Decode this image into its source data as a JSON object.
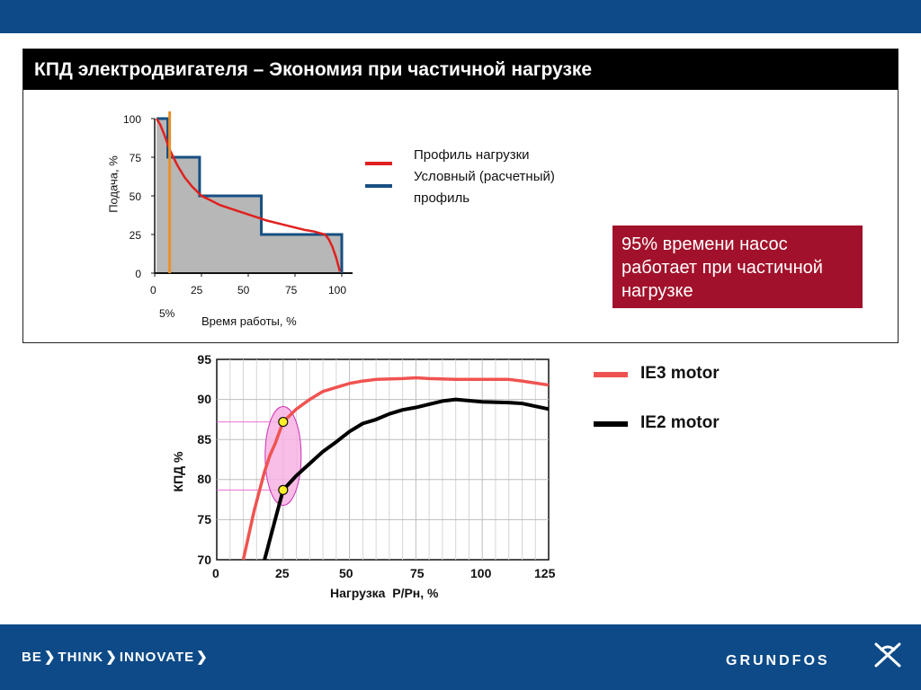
{
  "title": "КПД электродвигателя – Экономия при частичной нагрузке",
  "legend_top": {
    "load_profile": "Профиль нагрузки",
    "conditional_line1": "Условный (расчетный)",
    "conditional_line2": "профиль",
    "load_profile_color": "#e0211f",
    "conditional_color": "#174f82"
  },
  "callout": {
    "text_line1": "95% времени насос",
    "text_line2": "работает при частичной",
    "text_line3": "нагрузке",
    "color": "#a2112b"
  },
  "chart_data": [
    {
      "type": "area",
      "xlabel": "Время работы, %",
      "ylabel": "Подача, %",
      "xlim": [
        0,
        100
      ],
      "ylim": [
        0,
        100
      ],
      "xticks": [
        "0",
        "25",
        "50",
        "75",
        "100"
      ],
      "yticks": [
        "0",
        "25",
        "50",
        "75",
        "100"
      ],
      "marker_label": "5%",
      "marker_x": 8,
      "series": [
        {
          "name": "Профиль нагрузки",
          "color": "#e0211f",
          "x": [
            1,
            3,
            5,
            8,
            12,
            16,
            20,
            25,
            30,
            35,
            40,
            50,
            55,
            60,
            70,
            80,
            85,
            88,
            91,
            93,
            95,
            97,
            99
          ],
          "y": [
            100,
            96,
            90,
            80,
            70,
            62,
            56,
            50,
            47,
            44,
            42,
            38,
            36,
            34,
            31,
            28,
            27,
            26,
            25,
            22,
            17,
            10,
            1
          ]
        },
        {
          "name": "Условный (расчетный) профиль",
          "color": "#174f82",
          "x": [
            1,
            7,
            7,
            24,
            24,
            57,
            57,
            100,
            100
          ],
          "y": [
            100,
            100,
            75,
            75,
            50,
            50,
            25,
            25,
            0
          ]
        }
      ]
    },
    {
      "type": "line",
      "xlabel": "Нагрузка  Р/Рн, %",
      "ylabel": "КПД %",
      "xlim": [
        0,
        125
      ],
      "ylim": [
        70,
        95
      ],
      "xticks": [
        "0",
        "25",
        "50",
        "75",
        "100",
        "125"
      ],
      "yticks": [
        "70",
        "75",
        "80",
        "85",
        "90",
        "95"
      ],
      "highlight_points": [
        {
          "x": 25,
          "y": 87.2
        },
        {
          "x": 25,
          "y": 78.7
        }
      ],
      "series": [
        {
          "name": "IE3 motor",
          "color": "#ef5350",
          "x": [
            10,
            14,
            18,
            20,
            22,
            25,
            30,
            35,
            40,
            45,
            50,
            55,
            60,
            70,
            75,
            80,
            90,
            100,
            110,
            115,
            125
          ],
          "y": [
            70,
            76,
            81,
            83,
            84.5,
            87.2,
            88.8,
            90,
            91,
            91.5,
            92,
            92.3,
            92.5,
            92.6,
            92.7,
            92.6,
            92.5,
            92.5,
            92.5,
            92.3,
            91.8
          ]
        },
        {
          "name": "IE2 motor",
          "color": "#000000",
          "x": [
            18,
            22,
            25,
            30,
            35,
            40,
            45,
            50,
            55,
            60,
            65,
            70,
            75,
            80,
            85,
            90,
            100,
            110,
            115,
            125
          ],
          "y": [
            70,
            75,
            78.7,
            80.5,
            82,
            83.5,
            84.7,
            86,
            87,
            87.5,
            88.2,
            88.7,
            89,
            89.4,
            89.8,
            90,
            89.7,
            89.6,
            89.5,
            88.8
          ]
        }
      ]
    }
  ],
  "bottom_bar": {
    "slogan_be": "BE",
    "slogan_think": "THINK",
    "slogan_innovate": "INNOVATE",
    "logo": "GRUNDFOS"
  }
}
